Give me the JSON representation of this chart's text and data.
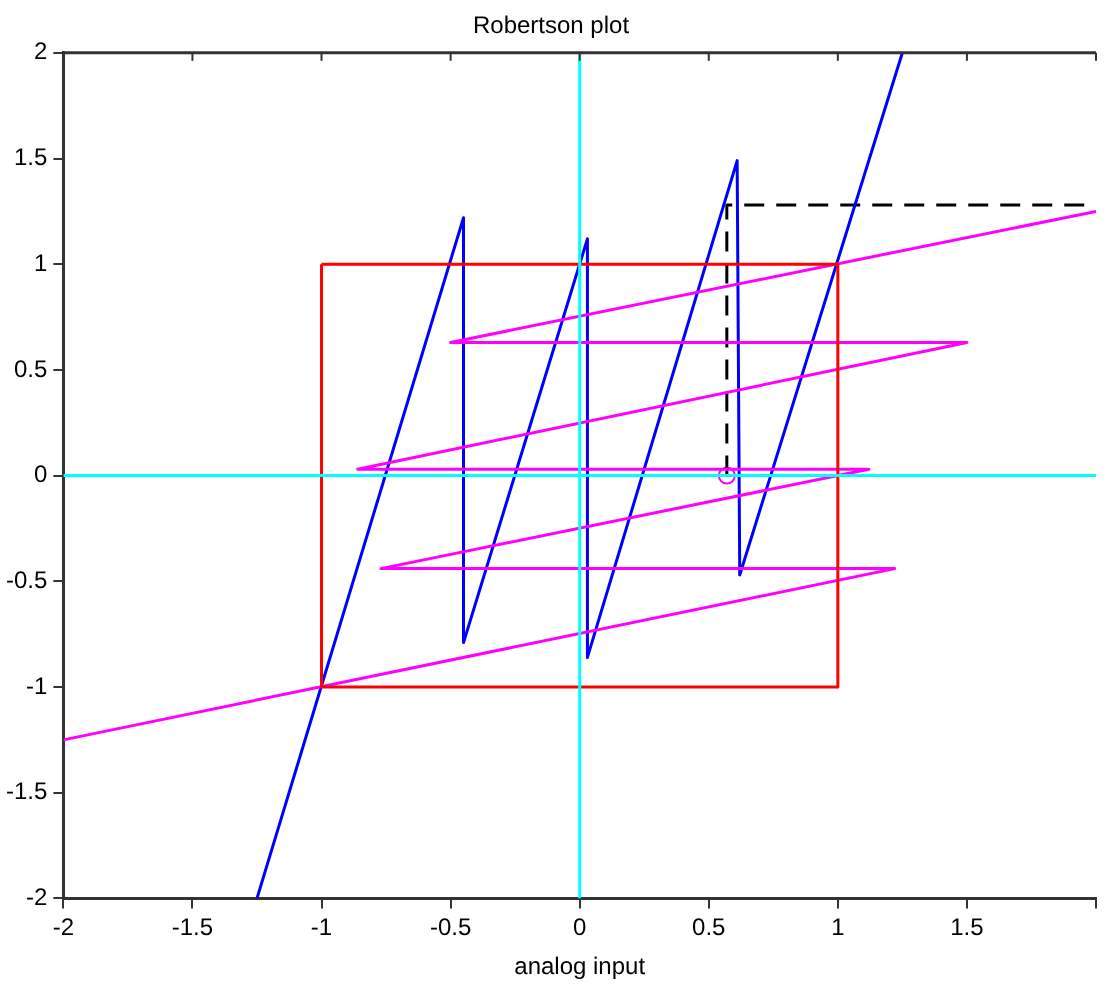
{
  "chart_data": {
    "type": "line",
    "title": "Robertson plot",
    "xlabel": "analog input",
    "xlim": [
      -2,
      2
    ],
    "ylim": [
      -2,
      2
    ],
    "xticks": [
      -2,
      -1.5,
      -1,
      -0.5,
      0,
      0.5,
      1,
      1.5,
      {
        "value": 2,
        "label": null
      }
    ],
    "yticks": [
      -2,
      -1.5,
      -1,
      -0.5,
      0,
      0.5,
      1,
      1.5,
      2
    ],
    "series": [
      {
        "color": "#00ffff",
        "x": [
          0,
          0
        ],
        "values": [
          -2,
          2
        ]
      },
      {
        "color": "#00ffff",
        "x": [
          -2,
          2
        ],
        "values": [
          0,
          0
        ]
      },
      {
        "color": "#ff0000",
        "x": [
          -1,
          1,
          1
        ],
        "values": [
          1,
          1,
          -1
        ]
      },
      {
        "color": "#ff0000",
        "x": [
          1,
          -1,
          -1
        ],
        "values": [
          -1,
          -1,
          1
        ]
      },
      {
        "color": "#ff00ff",
        "x": [
          -2,
          1.22,
          -0.77,
          1.12,
          -0.86,
          1.5,
          -0.5,
          2
        ],
        "values": [
          -1.25,
          -0.44,
          -0.44,
          0.03,
          0.03,
          0.63,
          0.63,
          1.25
        ]
      },
      {
        "color": "#0000ff",
        "x": [
          -1.25,
          -0.45,
          -0.45,
          0.03,
          0.03,
          0.61,
          0.62,
          1.25
        ],
        "values": [
          -2,
          1.22,
          -0.79,
          1.12,
          -0.86,
          1.49,
          -0.47,
          2
        ]
      },
      {
        "color": "#000000",
        "line_style": "dashed",
        "x": [
          0.57,
          0.57,
          2
        ],
        "values": [
          0,
          1.28,
          1.28
        ]
      },
      {
        "type": "scatter",
        "color": "#ff00ff",
        "marker": "circle",
        "x": [
          0.57
        ],
        "values": [
          0
        ]
      }
    ]
  }
}
